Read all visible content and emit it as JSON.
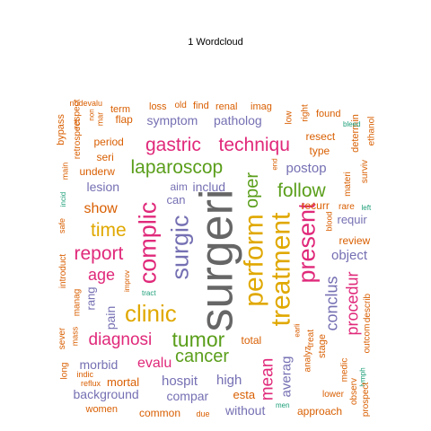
{
  "title": "1  Wordcloud",
  "colors": {
    "gray": "#666666",
    "gold": "#e0a800",
    "pink": "#e0297a",
    "green": "#5a9e1a",
    "purple": "#7570b3",
    "orange": "#d95f02",
    "teal": "#1b9e77",
    "tan": "#a6761d"
  },
  "words": [
    {
      "text": "surgeri",
      "color": "gray",
      "rotated": true
    },
    {
      "text": "perform",
      "color": "gold",
      "rotated": true
    },
    {
      "text": "treatment",
      "color": "gold",
      "rotated": true
    },
    {
      "text": "present",
      "color": "pink",
      "rotated": true
    },
    {
      "text": "complic",
      "color": "pink",
      "rotated": true
    },
    {
      "text": "surgic",
      "color": "purple",
      "rotated": true
    },
    {
      "text": "clinic",
      "color": "gold",
      "rotated": false
    },
    {
      "text": "tumor",
      "color": "green",
      "rotated": false
    },
    {
      "text": "laparoscop",
      "color": "green",
      "rotated": false
    },
    {
      "text": "gastric",
      "color": "pink",
      "rotated": false
    },
    {
      "text": "techniqu",
      "color": "pink",
      "rotated": false
    },
    {
      "text": "follow",
      "color": "green",
      "rotated": false
    },
    {
      "text": "report",
      "color": "pink",
      "rotated": false
    },
    {
      "text": "time",
      "color": "gold",
      "rotated": false
    },
    {
      "text": "cancer",
      "color": "green",
      "rotated": false
    },
    {
      "text": "diagnosi",
      "color": "pink",
      "rotated": false
    },
    {
      "text": "oper",
      "color": "green",
      "rotated": true
    },
    {
      "text": "mean",
      "color": "pink",
      "rotated": true
    },
    {
      "text": "procedur",
      "color": "pink",
      "rotated": true
    },
    {
      "text": "conclus",
      "color": "purple",
      "rotated": true
    },
    {
      "text": "age",
      "color": "pink",
      "rotated": false
    },
    {
      "text": "show",
      "color": "orange",
      "rotated": false
    },
    {
      "text": "evalu",
      "color": "pink",
      "rotated": false
    },
    {
      "text": "postop",
      "color": "purple",
      "rotated": false
    },
    {
      "text": "object",
      "color": "purple",
      "rotated": false
    },
    {
      "text": "symptom",
      "color": "purple",
      "rotated": false
    },
    {
      "text": "patholog",
      "color": "purple",
      "rotated": false
    },
    {
      "text": "hospit",
      "color": "purple",
      "rotated": false
    },
    {
      "text": "high",
      "color": "purple",
      "rotated": false
    },
    {
      "text": "averag",
      "color": "purple",
      "rotated": true
    },
    {
      "text": "background",
      "color": "purple",
      "rotated": false
    },
    {
      "text": "without",
      "color": "purple",
      "rotated": false
    },
    {
      "text": "morbid",
      "color": "purple",
      "rotated": false
    },
    {
      "text": "compar",
      "color": "purple",
      "rotated": false
    },
    {
      "text": "lesion",
      "color": "purple",
      "rotated": false
    },
    {
      "text": "includ",
      "color": "purple",
      "rotated": false
    },
    {
      "text": "can",
      "color": "purple",
      "rotated": false
    },
    {
      "text": "aim",
      "color": "purple",
      "rotated": false
    },
    {
      "text": "rang",
      "color": "purple",
      "rotated": true
    },
    {
      "text": "pain",
      "color": "purple",
      "rotated": true
    },
    {
      "text": "requir",
      "color": "purple",
      "rotated": false
    },
    {
      "text": "mortal",
      "color": "orange",
      "rotated": false
    },
    {
      "text": "esta",
      "color": "orange",
      "rotated": false
    },
    {
      "text": "period",
      "color": "orange",
      "rotated": false
    },
    {
      "text": "resect",
      "color": "orange",
      "rotated": false
    },
    {
      "text": "recurr",
      "color": "orange",
      "rotated": false
    },
    {
      "text": "review",
      "color": "orange",
      "rotated": false
    },
    {
      "text": "type",
      "color": "orange",
      "rotated": false
    },
    {
      "text": "total",
      "color": "orange",
      "rotated": false
    },
    {
      "text": "seri",
      "color": "orange",
      "rotated": false
    },
    {
      "text": "underw",
      "color": "orange",
      "rotated": false
    },
    {
      "text": "approach",
      "color": "orange",
      "rotated": false
    },
    {
      "text": "common",
      "color": "orange",
      "rotated": false
    },
    {
      "text": "women",
      "color": "orange",
      "rotated": false
    },
    {
      "text": "lower",
      "color": "orange",
      "rotated": false
    },
    {
      "text": "flap",
      "color": "orange",
      "rotated": false
    },
    {
      "text": "term",
      "color": "orange",
      "rotated": false
    },
    {
      "text": "loss",
      "color": "orange",
      "rotated": false
    },
    {
      "text": "old",
      "color": "orange",
      "rotated": false
    },
    {
      "text": "find",
      "color": "orange",
      "rotated": false
    },
    {
      "text": "renal",
      "color": "orange",
      "rotated": false
    },
    {
      "text": "imag",
      "color": "orange",
      "rotated": false
    },
    {
      "text": "found",
      "color": "orange",
      "rotated": false
    },
    {
      "text": "bypass",
      "color": "orange",
      "rotated": true
    },
    {
      "text": "respect",
      "color": "orange",
      "rotated": true
    },
    {
      "text": "retrospect",
      "color": "orange",
      "rotated": true
    },
    {
      "text": "main",
      "color": "orange",
      "rotated": true
    },
    {
      "text": "nodevalu",
      "color": "orange",
      "rotated": false
    },
    {
      "text": "non",
      "color": "orange",
      "rotated": true
    },
    {
      "text": "mar",
      "color": "orange",
      "rotated": true
    },
    {
      "text": "low",
      "color": "orange",
      "rotated": true
    },
    {
      "text": "right",
      "color": "orange",
      "rotated": true
    },
    {
      "text": "determin",
      "color": "orange",
      "rotated": true
    },
    {
      "text": "ethanol",
      "color": "orange",
      "rotated": true
    },
    {
      "text": "surviv",
      "color": "orange",
      "rotated": true
    },
    {
      "text": "materi",
      "color": "orange",
      "rotated": true
    },
    {
      "text": "blood",
      "color": "orange",
      "rotated": true
    },
    {
      "text": "rare",
      "color": "orange",
      "rotated": false
    },
    {
      "text": "left",
      "color": "teal",
      "rotated": false
    },
    {
      "text": "bleed",
      "color": "teal",
      "rotated": false
    },
    {
      "text": "end",
      "color": "orange",
      "rotated": true
    },
    {
      "text": "safe",
      "color": "orange",
      "rotated": true
    },
    {
      "text": "incid",
      "color": "teal",
      "rotated": true
    },
    {
      "text": "introduct",
      "color": "orange",
      "rotated": true
    },
    {
      "text": "manag",
      "color": "orange",
      "rotated": true
    },
    {
      "text": "improv",
      "color": "orange",
      "rotated": true
    },
    {
      "text": "tract",
      "color": "teal",
      "rotated": false
    },
    {
      "text": "sever",
      "color": "orange",
      "rotated": true
    },
    {
      "text": "mass",
      "color": "orange",
      "rotated": true
    },
    {
      "text": "long",
      "color": "orange",
      "rotated": true
    },
    {
      "text": "indic",
      "color": "orange",
      "rotated": false
    },
    {
      "text": "reflux",
      "color": "orange",
      "rotated": false
    },
    {
      "text": "analyz",
      "color": "orange",
      "rotated": true
    },
    {
      "text": "treat",
      "color": "orange",
      "rotated": true
    },
    {
      "text": "earli",
      "color": "orange",
      "rotated": true
    },
    {
      "text": "stage",
      "color": "orange",
      "rotated": true
    },
    {
      "text": "medic",
      "color": "orange",
      "rotated": true
    },
    {
      "text": "observ",
      "color": "orange",
      "rotated": true
    },
    {
      "text": "lymph",
      "color": "teal",
      "rotated": true
    },
    {
      "text": "prospect",
      "color": "orange",
      "rotated": true
    },
    {
      "text": "outcom",
      "color": "orange",
      "rotated": true
    },
    {
      "text": "describ",
      "color": "orange",
      "rotated": true
    },
    {
      "text": "due",
      "color": "orange",
      "rotated": false
    },
    {
      "text": "men",
      "color": "teal",
      "rotated": false
    }
  ]
}
